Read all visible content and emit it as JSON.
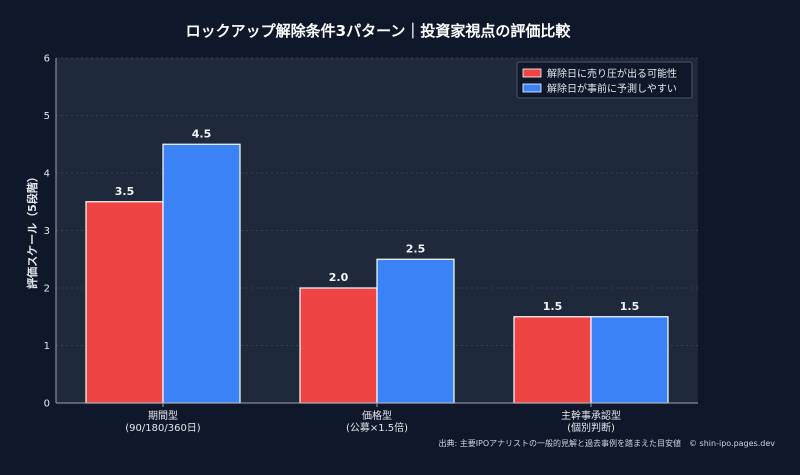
{
  "colors": {
    "background": "#0f172a",
    "plot_background": "#1e293b",
    "grid": "#334155",
    "series_1": "#ef4444",
    "series_2": "#3b82f6",
    "axis": "#9ca3af"
  },
  "chart_data": {
    "type": "bar",
    "title": "ロックアップ解除条件3パターン｜投資家視点の評価比較",
    "ylabel": "評価スケール（5段階）",
    "xlabel": "",
    "ylim": [
      0,
      6
    ],
    "yticks": [
      "0",
      "1",
      "2",
      "3",
      "4",
      "5",
      "6"
    ],
    "grid": true,
    "legend_position": "top-right",
    "categories": [
      [
        "期間型",
        "(90/180/360日)"
      ],
      [
        "価格型",
        "(公募×1.5倍)"
      ],
      [
        "主幹事承認型",
        "(個別判断)"
      ]
    ],
    "series": [
      {
        "name": "解除日に売り圧が出る可能性",
        "color": "#ef4444",
        "values": [
          3.5,
          2.0,
          1.5
        ],
        "labels": [
          "3.5",
          "2.0",
          "1.5"
        ]
      },
      {
        "name": "解除日が事前に予測しやすい",
        "color": "#3b82f6",
        "values": [
          4.5,
          2.5,
          1.5
        ],
        "labels": [
          "4.5",
          "2.5",
          "1.5"
        ]
      }
    ]
  },
  "footer": {
    "source": "出典: 主要IPOアナリストの一般的見解と過去事例を踏まえた目安値　© shin-ipo.pages.dev"
  }
}
